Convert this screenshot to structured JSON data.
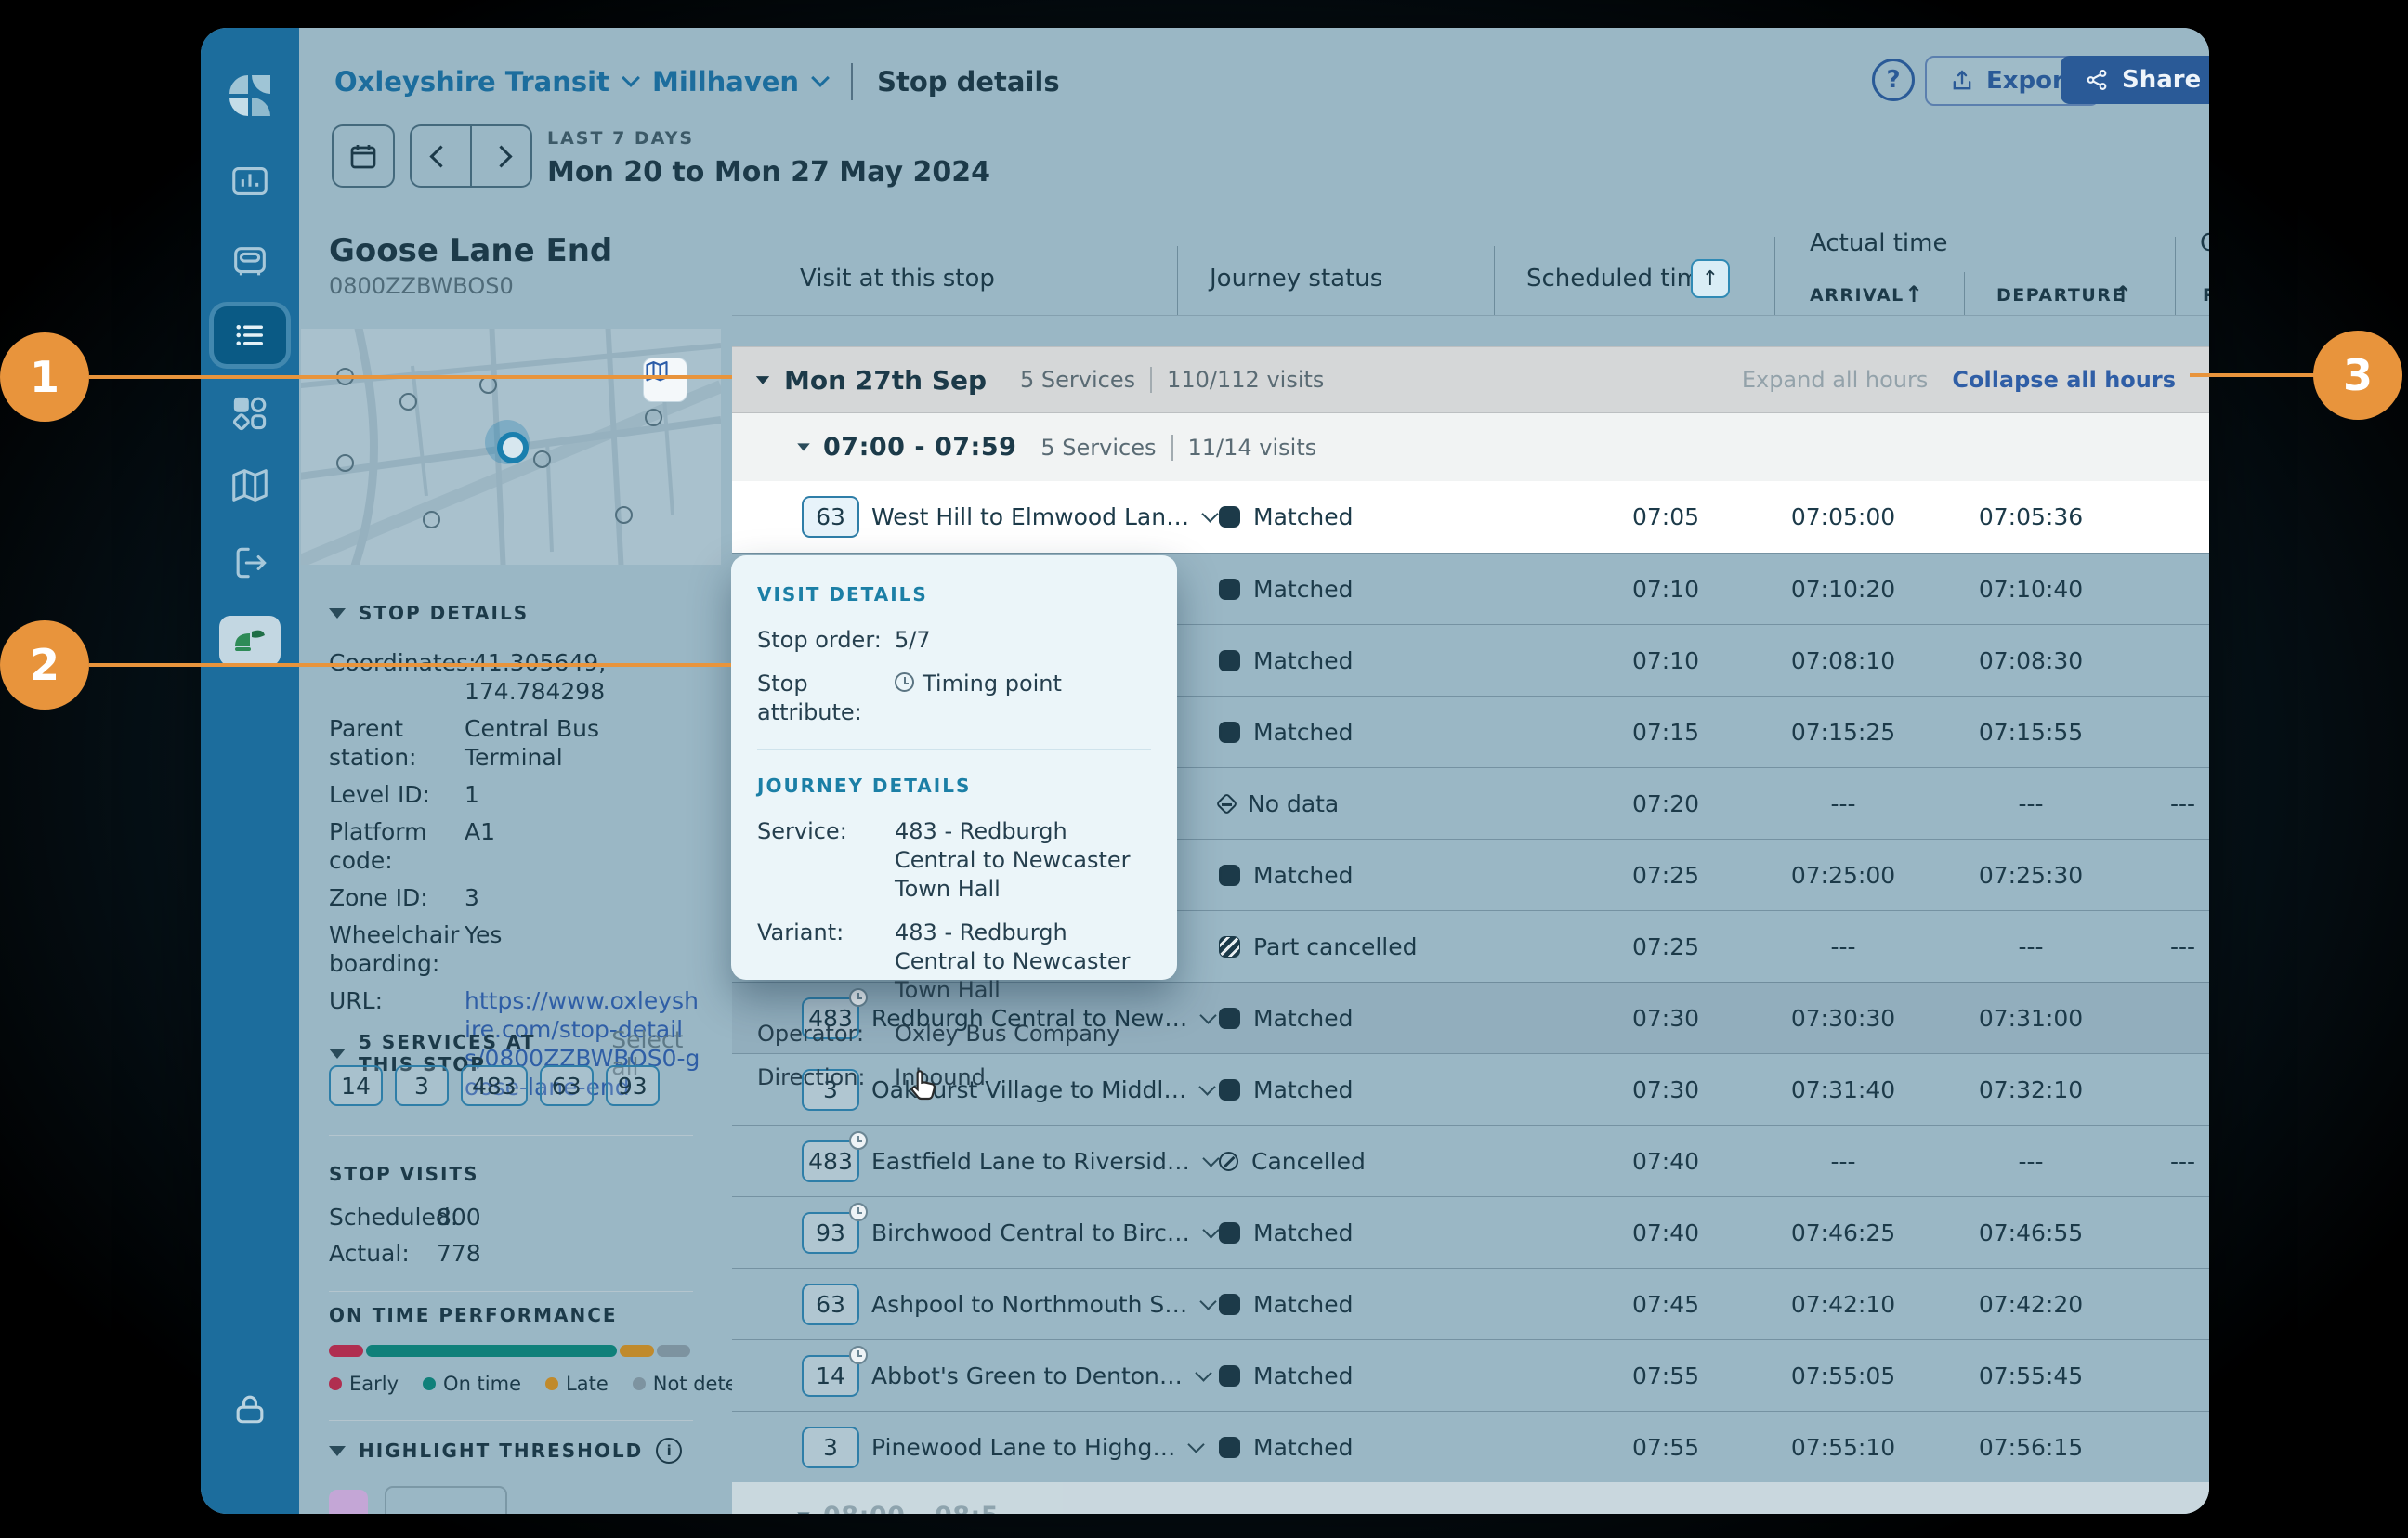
{
  "colors": {
    "accent_orange": "#E8943C",
    "sidebar_blue": "#1C6D9D",
    "button_blue": "#2A5A97",
    "link_blue": "#2F5EA6",
    "early": "#B02E50",
    "on_time": "#10807A",
    "late": "#C08A2C",
    "not_detected": "#7D93A0"
  },
  "icons": {
    "help": "?",
    "info": "i",
    "sort_arrow": "↑",
    "col_arrow": "↑"
  },
  "header": {
    "breadcrumb1": "Oxleyshire Transit",
    "breadcrumb2": "Millhaven",
    "page_title": "Stop details",
    "export_label": "Export",
    "share_label": "Share"
  },
  "datebar": {
    "label": "LAST 7 DAYS",
    "range": "Mon 20 to Mon 27 May 2024"
  },
  "panel": {
    "stop_name": "Goose Lane End",
    "stop_code": "0800ZZBWBOS0",
    "details_title": "STOP DETAILS",
    "fields": [
      {
        "label": "Coordinates:",
        "value": "-41.305649, 174.784298"
      },
      {
        "label": "Parent station:",
        "value": "Central Bus Terminal"
      },
      {
        "label": "Level ID:",
        "value": "1"
      },
      {
        "label": "Platform code:",
        "value": "A1"
      },
      {
        "label": "Zone ID:",
        "value": "3"
      },
      {
        "label": "Wheelchair boarding:",
        "value": "Yes"
      },
      {
        "label": "URL:",
        "value": "https://www.oxleyshire.com/stop-details/0800ZZBWBOS0-goose-lane-end",
        "link": true
      }
    ],
    "services_title": "5 SERVICES AT THIS STOP",
    "select_all": "Select all",
    "service_chips": [
      "14",
      "3",
      "483",
      "63",
      "93"
    ],
    "stop_visits_title": "STOP VISITS",
    "scheduled_label": "Scheduled:",
    "scheduled_value": "800",
    "actual_label": "Actual:",
    "actual_value": "778",
    "otp_title": "ON TIME PERFORMANCE",
    "otp_segments": [
      {
        "name": "Early",
        "color": "#B02E50",
        "pct": 9.6
      },
      {
        "name": "On time",
        "color": "#10807A",
        "pct": 69.5
      },
      {
        "name": "Late",
        "color": "#C08A2C",
        "pct": 9.6
      },
      {
        "name": "Not detected",
        "color": "#7D93A0",
        "pct": 9.3
      }
    ],
    "legend": [
      {
        "label": "Early",
        "color": "#B02E50"
      },
      {
        "label": "On time",
        "color": "#10807A"
      },
      {
        "label": "Late",
        "color": "#C08A2C"
      },
      {
        "label": "Not detected",
        "color": "#7D93A0"
      }
    ],
    "highlight_title": "HIGHLIGHT THRESHOLD"
  },
  "table": {
    "headers": {
      "visit": "Visit at this stop",
      "journey_status": "Journey status",
      "scheduled": "Scheduled time",
      "actual_group": "Actual time",
      "arrival": "ARRIVAL",
      "departure": "DEPARTURE",
      "edge_group_partial": "C",
      "edge_sub_partial": "P"
    },
    "day_group": {
      "label": "Mon 27th Sep",
      "services": "5 Services",
      "visits": "110/112 visits",
      "expand": "Expand all hours",
      "collapse": "Collapse all hours"
    },
    "hour_group": {
      "label": "07:00 - 07:59",
      "services": "5 Services",
      "visits": "11/14 visits"
    },
    "partial_next_hour": "08:00 - 08:5",
    "rows": [
      {
        "service": "63",
        "timing_point": false,
        "route": "West Hill to Elmwood Lan…",
        "status": "Matched",
        "status_type": "matched",
        "sched": "07:05",
        "arr": "07:05:00",
        "dep": "07:05:36",
        "bg": "white"
      },
      {
        "service": "",
        "timing_point": false,
        "route": "",
        "status": "Matched",
        "status_type": "matched",
        "sched": "07:10",
        "arr": "07:10:20",
        "dep": "07:10:40",
        "bg": "tint"
      },
      {
        "service": "",
        "timing_point": false,
        "route": "",
        "status": "Matched",
        "status_type": "matched",
        "sched": "07:10",
        "arr": "07:08:10",
        "dep": "07:08:30",
        "bg": "tint"
      },
      {
        "service": "",
        "timing_point": false,
        "route": "",
        "status": "Matched",
        "status_type": "matched",
        "sched": "07:15",
        "arr": "07:15:25",
        "dep": "07:15:55",
        "bg": "tint"
      },
      {
        "service": "",
        "timing_point": false,
        "route": "",
        "status": "No data",
        "status_type": "nodata",
        "sched": "07:20",
        "arr": "---",
        "dep": "---",
        "bg": "tint",
        "edge": "---"
      },
      {
        "service": "",
        "timing_point": false,
        "route": "",
        "status": "Matched",
        "status_type": "matched",
        "sched": "07:25",
        "arr": "07:25:00",
        "dep": "07:25:30",
        "bg": "tint"
      },
      {
        "service": "",
        "timing_point": false,
        "route": "",
        "status": "Part cancelled",
        "status_type": "partcancelled",
        "sched": "07:25",
        "arr": "---",
        "dep": "---",
        "bg": "tint",
        "edge": "---"
      },
      {
        "service": "483",
        "timing_point": true,
        "route": "Redburgh Central to New…",
        "status": "Matched",
        "status_type": "matched",
        "sched": "07:30",
        "arr": "07:30:30",
        "dep": "07:31:00",
        "bg": "dark"
      },
      {
        "service": "3",
        "timing_point": false,
        "route": "Oakhurst Village to Middl…",
        "status": "Matched",
        "status_type": "matched",
        "sched": "07:30",
        "arr": "07:31:40",
        "dep": "07:32:10",
        "bg": "tint"
      },
      {
        "service": "483",
        "timing_point": true,
        "route": "Eastfield Lane to Riversid…",
        "status": "Cancelled",
        "status_type": "cancelled",
        "sched": "07:40",
        "arr": "---",
        "dep": "---",
        "bg": "tint",
        "edge": "---"
      },
      {
        "service": "93",
        "timing_point": true,
        "route": "Birchwood Central to Birc…",
        "status": "Matched",
        "status_type": "matched",
        "sched": "07:40",
        "arr": "07:46:25",
        "dep": "07:46:55",
        "bg": "tint"
      },
      {
        "service": "63",
        "timing_point": false,
        "route": "Ashpool to Northmouth S…",
        "status": "Matched",
        "status_type": "matched",
        "sched": "07:45",
        "arr": "07:42:10",
        "dep": "07:42:20",
        "bg": "tint"
      },
      {
        "service": "14",
        "timing_point": true,
        "route": "Abbot's Green to Denton…",
        "status": "Matched",
        "status_type": "matched",
        "sched": "07:55",
        "arr": "07:55:05",
        "dep": "07:55:45",
        "bg": "tint"
      },
      {
        "service": "3",
        "timing_point": false,
        "route": "Pinewood Lane to Highg…",
        "status": "Matched",
        "status_type": "matched",
        "sched": "07:55",
        "arr": "07:55:10",
        "dep": "07:56:15",
        "bg": "tint"
      }
    ]
  },
  "popup": {
    "visit_title": "VISIT DETAILS",
    "stop_order_label": "Stop order:",
    "stop_order_value": "5/7",
    "stop_attr_label": "Stop attribute:",
    "stop_attr_value": "Timing point",
    "journey_title": "JOURNEY DETAILS",
    "service_label": "Service:",
    "service_value": "483 - Redburgh Central to Newcaster Town Hall",
    "variant_label": "Variant:",
    "variant_value": "483 - Redburgh Central to Newcaster Town Hall",
    "operator_label": "Operator:",
    "operator_value": "Oxley Bus Company",
    "direction_label": "Direction:",
    "direction_value": "Inbound"
  },
  "callouts": {
    "one": "1",
    "two": "2",
    "three": "3"
  }
}
